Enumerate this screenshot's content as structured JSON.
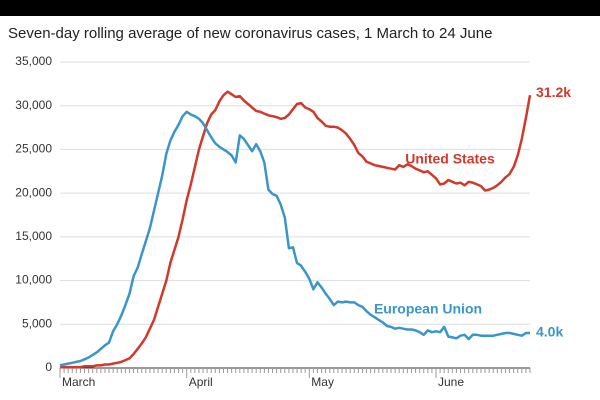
{
  "chart_data": {
    "type": "line",
    "title": "Seven-day rolling average of new coronavirus cases, 1 March to 24 June",
    "categories": [
      "March",
      null,
      null,
      null,
      null,
      null,
      null,
      null,
      null,
      null,
      null,
      null,
      null,
      null,
      null,
      null,
      null,
      null,
      null,
      null,
      null,
      null,
      null,
      null,
      null,
      null,
      null,
      null,
      null,
      null,
      null,
      "April",
      null,
      null,
      null,
      null,
      null,
      null,
      null,
      null,
      null,
      null,
      null,
      null,
      null,
      null,
      null,
      null,
      null,
      null,
      null,
      null,
      null,
      null,
      null,
      null,
      null,
      null,
      null,
      null,
      null,
      "May",
      null,
      null,
      null,
      null,
      null,
      null,
      null,
      null,
      null,
      null,
      null,
      null,
      null,
      null,
      null,
      null,
      null,
      null,
      null,
      null,
      null,
      null,
      null,
      null,
      null,
      null,
      null,
      null,
      null,
      null,
      "June",
      null,
      null,
      null,
      null,
      null,
      null,
      null,
      null,
      null,
      null,
      null,
      null,
      null,
      null,
      null,
      null,
      null,
      null,
      null,
      null,
      null,
      null,
      null
    ],
    "series": [
      {
        "name": "United States",
        "color": "#d0392b",
        "values": [
          100,
          100,
          100,
          100,
          100,
          100,
          200,
          200,
          200,
          300,
          300,
          400,
          400,
          500,
          600,
          700,
          900,
          1100,
          1600,
          2200,
          2800,
          3500,
          4500,
          5500,
          7000,
          8500,
          10000,
          12000,
          13500,
          15000,
          17000,
          19200,
          21000,
          23000,
          25000,
          26500,
          28000,
          29000,
          29500,
          30500,
          31200,
          31600,
          31300,
          31000,
          31100,
          30600,
          30200,
          29800,
          29400,
          29300,
          29100,
          28900,
          28800,
          28700,
          28500,
          28600,
          29000,
          29600,
          30200,
          30300,
          29800,
          29600,
          29300,
          28600,
          28200,
          27700,
          27600,
          27600,
          27500,
          27200,
          26800,
          26200,
          25500,
          24600,
          24200,
          23600,
          23400,
          23200,
          23100,
          23000,
          22900,
          22800,
          22700,
          23200,
          23000,
          23300,
          23100,
          22800,
          22600,
          22400,
          22500,
          22100,
          21700,
          21000,
          21100,
          21500,
          21300,
          21100,
          21200,
          20900,
          21300,
          21200,
          21000,
          20800,
          20300,
          20400,
          20600,
          20900,
          21300,
          21800,
          22200,
          23000,
          24300,
          26200,
          28600,
          31200
        ],
        "value_labels": [
          null,
          null,
          null,
          null,
          null,
          null,
          null,
          null,
          null,
          null,
          null,
          null,
          null,
          null,
          null,
          null,
          null,
          null,
          null,
          null,
          null,
          null,
          null,
          null,
          null,
          null,
          null,
          null,
          null,
          null,
          null,
          null,
          null,
          null,
          null,
          null,
          null,
          null,
          null,
          null,
          null,
          null,
          null,
          null,
          null,
          null,
          null,
          null,
          null,
          null,
          null,
          null,
          null,
          null,
          null,
          null,
          null,
          null,
          null,
          null,
          null,
          null,
          null,
          null,
          null,
          null,
          null,
          null,
          null,
          null,
          null,
          null,
          null,
          null,
          null,
          null,
          null,
          null,
          null,
          null,
          null,
          null,
          null,
          null,
          null,
          null,
          null,
          null,
          null,
          null,
          null,
          null,
          null,
          null,
          null,
          null,
          null,
          null,
          null,
          null,
          null,
          null,
          null,
          null,
          null,
          null,
          null,
          null,
          null,
          null,
          null,
          null,
          null,
          null,
          null,
          "31.2k"
        ]
      },
      {
        "name": "European Union",
        "color": "#3a96c9",
        "values": [
          300,
          400,
          500,
          600,
          700,
          800,
          1000,
          1200,
          1500,
          1800,
          2200,
          2600,
          2900,
          4200,
          5000,
          6000,
          7200,
          8500,
          10500,
          11500,
          13000,
          14500,
          16000,
          18000,
          20000,
          22000,
          24500,
          26000,
          27000,
          27800,
          28800,
          29300,
          29000,
          28800,
          28500,
          28000,
          27200,
          26400,
          25700,
          25300,
          25000,
          24700,
          24300,
          23500,
          26600,
          26200,
          25500,
          24800,
          25600,
          24800,
          23500,
          20400,
          19900,
          19700,
          18700,
          17200,
          13700,
          13800,
          12000,
          11700,
          11000,
          10200,
          9000,
          9800,
          9200,
          8500,
          7900,
          7200,
          7600,
          7500,
          7600,
          7500,
          7500,
          7200,
          7000,
          6500,
          6100,
          5800,
          5500,
          5200,
          4800,
          4700,
          4500,
          4600,
          4500,
          4400,
          4400,
          4300,
          4100,
          3800,
          4300,
          4100,
          4200,
          4100,
          4700,
          3600,
          3500,
          3400,
          3700,
          3800,
          3300,
          3800,
          3800,
          3700,
          3700,
          3700,
          3700,
          3800,
          3900,
          4000,
          4000,
          3900,
          3800,
          3700,
          4000,
          4000
        ],
        "value_labels": [
          null,
          null,
          null,
          null,
          null,
          null,
          null,
          null,
          null,
          null,
          null,
          null,
          null,
          null,
          null,
          null,
          null,
          null,
          null,
          null,
          null,
          null,
          null,
          null,
          null,
          null,
          null,
          null,
          null,
          null,
          null,
          null,
          null,
          null,
          null,
          null,
          null,
          null,
          null,
          null,
          null,
          null,
          null,
          null,
          null,
          null,
          null,
          null,
          null,
          null,
          null,
          null,
          null,
          null,
          null,
          null,
          null,
          null,
          null,
          null,
          null,
          null,
          null,
          null,
          null,
          null,
          null,
          null,
          null,
          null,
          null,
          null,
          null,
          null,
          null,
          null,
          null,
          null,
          null,
          null,
          null,
          null,
          null,
          null,
          null,
          null,
          null,
          null,
          null,
          null,
          null,
          null,
          null,
          null,
          null,
          null,
          null,
          null,
          null,
          null,
          null,
          null,
          null,
          null,
          null,
          null,
          null,
          null,
          null,
          null,
          null,
          null,
          null,
          null,
          null,
          "4.0k"
        ]
      }
    ],
    "ylim": [
      0,
      35000
    ],
    "yticks": [
      0,
      {
        "value": 5000,
        "label": "5,000"
      },
      {
        "value": 10000,
        "label": "10,000"
      },
      {
        "value": 15000,
        "label": "15,000"
      },
      {
        "value": 20000,
        "label": "20,000"
      },
      {
        "value": 25000,
        "label": "25,000"
      },
      {
        "value": 30000,
        "label": "30,000"
      },
      {
        "value": 35000,
        "label": "35,000"
      }
    ],
    "grid": true
  }
}
